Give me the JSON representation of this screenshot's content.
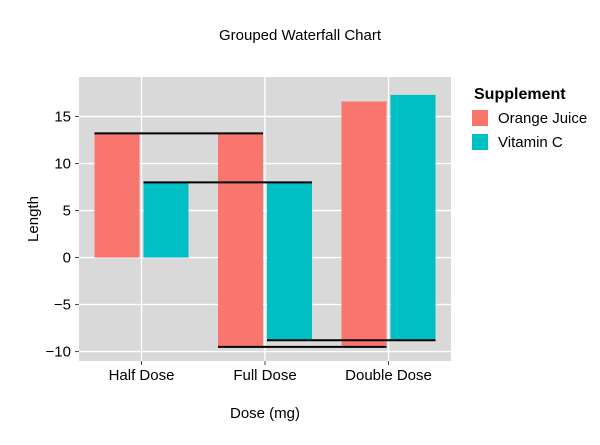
{
  "chart_data": {
    "type": "bar",
    "subtype": "grouped-waterfall",
    "title": "Grouped Waterfall Chart",
    "xlabel": "Dose (mg)",
    "ylabel": "Length",
    "categories": [
      "Half Dose",
      "Full Dose",
      "Double Dose"
    ],
    "yticks": [
      15,
      10,
      5,
      0,
      -5,
      -10
    ],
    "ytick_labels": [
      "15",
      "10",
      "5",
      "0",
      "−5",
      "−10"
    ],
    "ylim": [
      -11.0,
      19.2
    ],
    "grid": true,
    "legend": {
      "title": "Supplement",
      "placement": "right"
    },
    "series": [
      {
        "name": "Orange Juice",
        "color": "#F8766D",
        "bars": [
          {
            "base": 0,
            "end": 13.2
          },
          {
            "base": 13.2,
            "end": -9.5
          },
          {
            "base": -9.5,
            "end": 16.6
          }
        ]
      },
      {
        "name": "Vitamin C",
        "color": "#00BFC4",
        "bars": [
          {
            "base": 0,
            "end": 8.0
          },
          {
            "base": 8.0,
            "end": -8.8
          },
          {
            "base": -8.8,
            "end": 17.3
          }
        ]
      }
    ],
    "connectors": [
      {
        "series": 0,
        "value": 13.2,
        "from_category": 0,
        "to_category": 1
      },
      {
        "series": 0,
        "value": -9.5,
        "from_category": 1,
        "to_category": 2
      },
      {
        "series": 1,
        "value": 8.0,
        "from_category": 0,
        "to_category": 1
      },
      {
        "series": 1,
        "value": -8.8,
        "from_category": 1,
        "to_category": 2
      }
    ],
    "panel_color": "#D9D9D9",
    "grid_color": "#FFFFFF"
  }
}
